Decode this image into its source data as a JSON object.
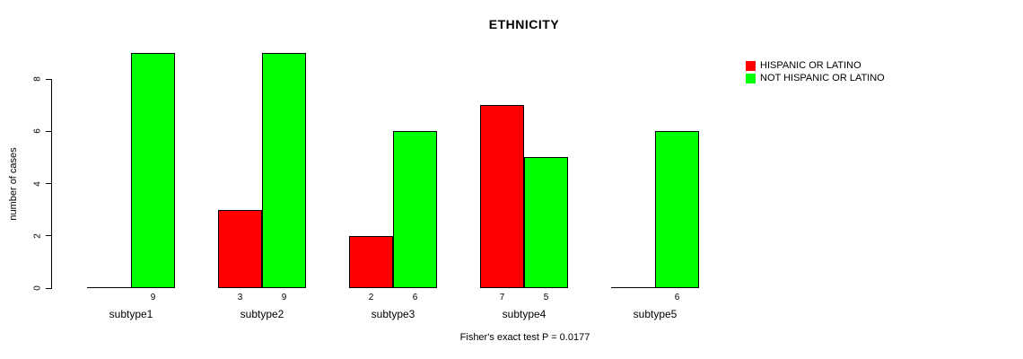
{
  "chart_data": {
    "type": "bar",
    "title": "ETHNICITY",
    "categories": [
      "subtype1",
      "subtype2",
      "subtype3",
      "subtype4",
      "subtype5"
    ],
    "series": [
      {
        "name": "HISPANIC OR LATINO",
        "color": "#ff0000",
        "values": [
          0,
          3,
          2,
          7,
          0
        ],
        "bar_labels": [
          "",
          "3",
          "2",
          "7",
          ""
        ]
      },
      {
        "name": "NOT HISPANIC OR LATINO",
        "color": "#00ff00",
        "values": [
          9,
          9,
          6,
          5,
          6
        ],
        "bar_labels": [
          "9",
          "9",
          "6",
          "5",
          "6"
        ]
      }
    ],
    "xlabel": "",
    "ylabel": "number of cases",
    "ylim": [
      0,
      9
    ],
    "yticks": [
      0,
      2,
      4,
      6,
      8
    ],
    "grid": false,
    "legend_position": "top-right",
    "bar_border_color": "#000000",
    "annotation": "Fisher's exact test P = 0.0177"
  }
}
